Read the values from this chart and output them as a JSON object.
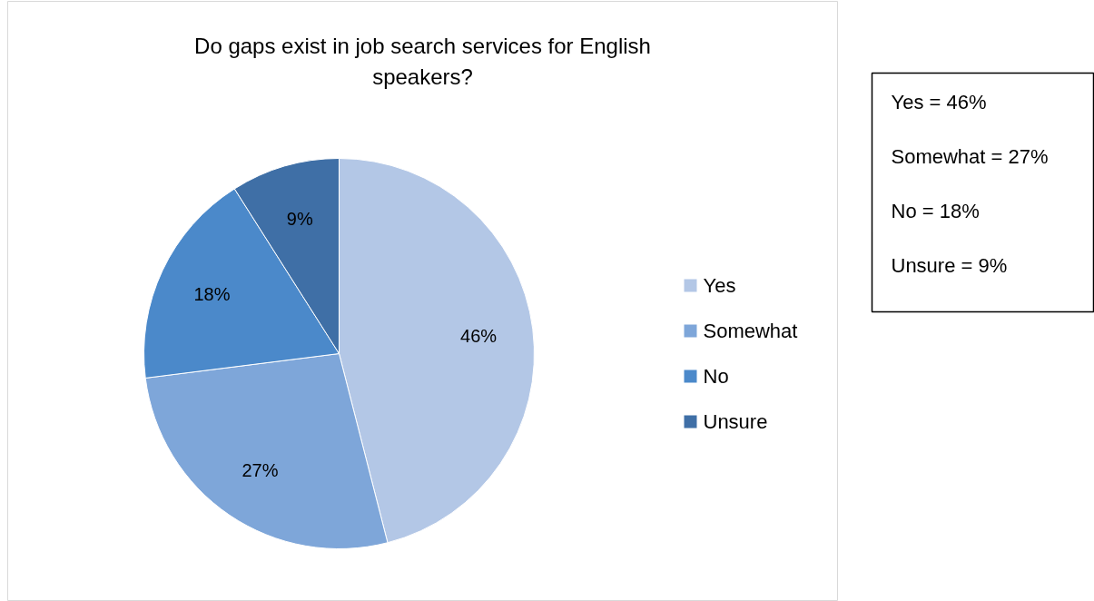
{
  "chart_data": {
    "type": "pie",
    "title": "Do gaps exist in job search services for English speakers?",
    "categories": [
      "Yes",
      "Somewhat",
      "No",
      "Unsure"
    ],
    "values": [
      46,
      27,
      18,
      9
    ],
    "colors": [
      "#b3c7e6",
      "#7ea6d9",
      "#4b89ca",
      "#3f6fa6"
    ],
    "value_labels": [
      "46%",
      "27%",
      "18%",
      "9%"
    ],
    "legend": "right",
    "annotations": [
      "Yes = 46%",
      "Somewhat = 27%",
      "No = 18%",
      "Unsure = 9%"
    ]
  }
}
